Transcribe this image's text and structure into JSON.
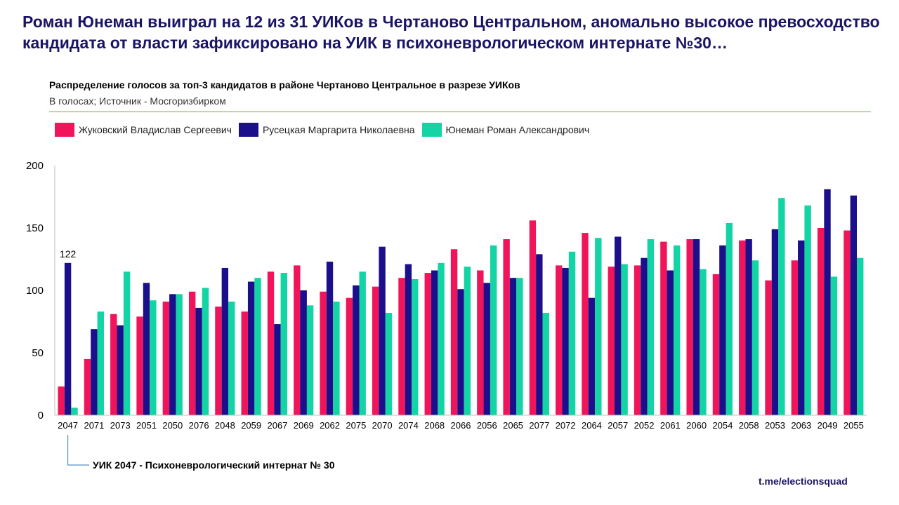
{
  "headline": "Роман Юнеман выиграл на 12 из 31 УИКов в Чертаново Центральном, аномально высокое превосходство кандидата от власти зафиксировано на УИК в психоневрологическом интернате №30…",
  "chart_subtitle": "Распределение голосов за топ-3 кандидатов в районе Чертаново Центральное в разрезе УИКов",
  "chart_source": "В голосах; Источник - Мосгоризбирком",
  "footnote": "УИК 2047 - Психоневрологический интернат № 30",
  "brand": "t.me/electionsquad",
  "colors": {
    "accent_line": "#70ad47",
    "title": "#1a1464"
  },
  "chart_data": {
    "type": "bar",
    "categories": [
      "2047",
      "2071",
      "2073",
      "2051",
      "2050",
      "2076",
      "2048",
      "2059",
      "2067",
      "2069",
      "2062",
      "2075",
      "2070",
      "2074",
      "2068",
      "2066",
      "2056",
      "2065",
      "2077",
      "2072",
      "2064",
      "2057",
      "2052",
      "2061",
      "2060",
      "2054",
      "2058",
      "2053",
      "2063",
      "2049",
      "2055"
    ],
    "series": [
      {
        "name": "Жуковский Владислав Сергеевич",
        "color": "#f0145a",
        "values": [
          23,
          45,
          81,
          79,
          91,
          99,
          87,
          83,
          115,
          120,
          99,
          94,
          103,
          110,
          114,
          133,
          116,
          141,
          156,
          120,
          146,
          119,
          120,
          139,
          141,
          113,
          140,
          108,
          124,
          150,
          148
        ]
      },
      {
        "name": "Русецкая Маргарита Николаевна",
        "color": "#1c0f8c",
        "values": [
          122,
          69,
          72,
          106,
          97,
          86,
          118,
          107,
          73,
          100,
          123,
          104,
          135,
          121,
          116,
          101,
          106,
          110,
          129,
          118,
          94,
          143,
          126,
          116,
          141,
          136,
          141,
          149,
          140,
          181,
          176
        ]
      },
      {
        "name": "Юнеман Роман Александрович",
        "color": "#13d4a4",
        "values": [
          6,
          83,
          115,
          92,
          97,
          102,
          91,
          110,
          114,
          88,
          91,
          115,
          82,
          109,
          122,
          119,
          136,
          110,
          82,
          131,
          142,
          121,
          141,
          136,
          117,
          154,
          124,
          174,
          168,
          111,
          126
        ]
      }
    ],
    "ylim": [
      0,
      200
    ],
    "yticks": [
      0,
      50,
      100,
      150,
      200
    ],
    "annotations": [
      {
        "category": "2047",
        "series": 1,
        "text": "122"
      }
    ],
    "legend_position": "top-left",
    "grid": false
  }
}
